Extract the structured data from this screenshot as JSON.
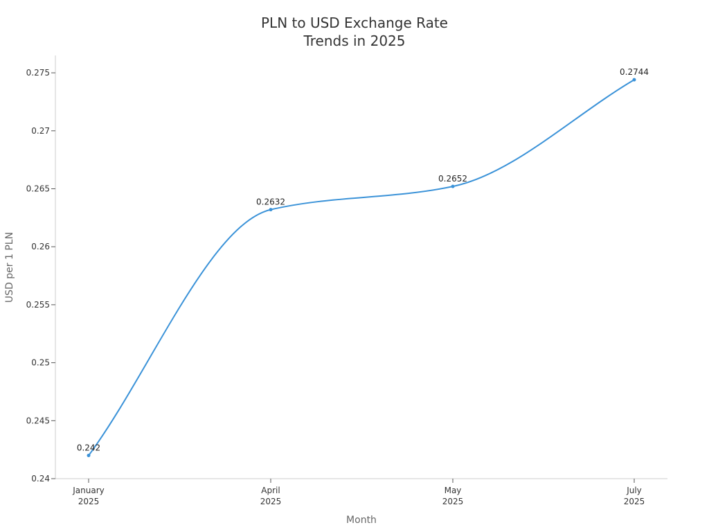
{
  "chart_data": {
    "type": "line",
    "title_lines": [
      "PLN to USD Exchange Rate",
      "Trends in 2025"
    ],
    "xlabel": "Month",
    "ylabel": "USD per 1 PLN",
    "categories": [
      [
        "January",
        "2025"
      ],
      [
        "April",
        "2025"
      ],
      [
        "May",
        "2025"
      ],
      [
        "July",
        "2025"
      ]
    ],
    "series": [
      {
        "values": [
          0.242,
          0.2632,
          0.2652,
          0.2744
        ],
        "color": "#3a92d8"
      }
    ],
    "data_labels": [
      "0.242",
      "0.2632",
      "0.2652",
      "0.2744"
    ],
    "ylim": [
      0.24,
      0.2765
    ],
    "yticks": [
      0.24,
      0.245,
      0.25,
      0.255,
      0.26,
      0.265,
      0.27,
      0.275
    ],
    "ytick_labels": [
      "0.24",
      "0.245",
      "0.25",
      "0.255",
      "0.26",
      "0.265",
      "0.27",
      "0.275"
    ],
    "grid": false,
    "smooth": true
  }
}
